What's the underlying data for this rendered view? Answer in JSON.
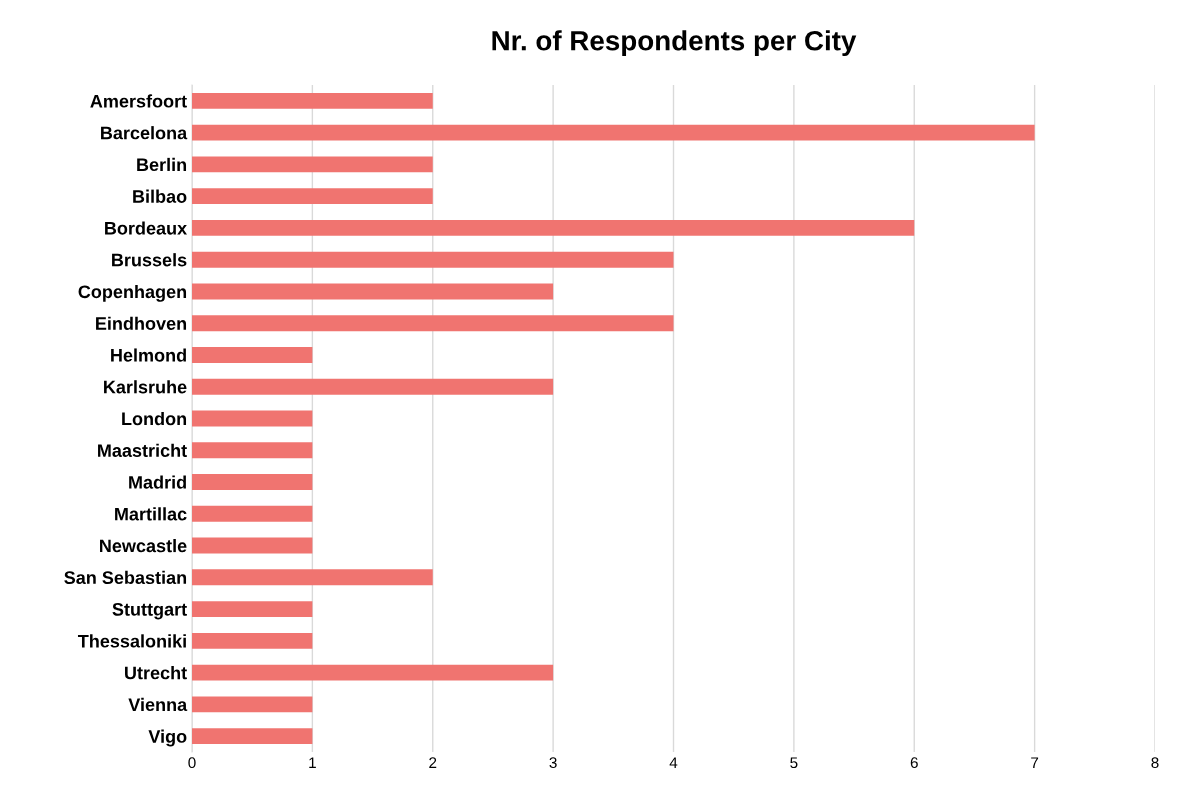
{
  "chart_data": {
    "type": "bar",
    "orientation": "horizontal",
    "title": "Nr. of Respondents per City",
    "categories": [
      "Amersfoort",
      "Barcelona",
      "Berlin",
      "Bilbao",
      "Bordeaux",
      "Brussels",
      "Copenhagen",
      "Eindhoven",
      "Helmond",
      "Karlsruhe",
      "London",
      "Maastricht",
      "Madrid",
      "Martillac",
      "Newcastle",
      "San Sebastian",
      "Stuttgart",
      "Thessaloniki",
      "Utrecht",
      "Vienna",
      "Vigo"
    ],
    "values": [
      2,
      7,
      2,
      2,
      6,
      4,
      3,
      4,
      1,
      3,
      1,
      1,
      1,
      1,
      1,
      2,
      1,
      1,
      3,
      1,
      1
    ],
    "color": "#f07470",
    "xlim": [
      0,
      8
    ],
    "xticks": [
      0,
      1,
      2,
      3,
      4,
      5,
      6,
      7,
      8
    ],
    "grid": "x"
  }
}
